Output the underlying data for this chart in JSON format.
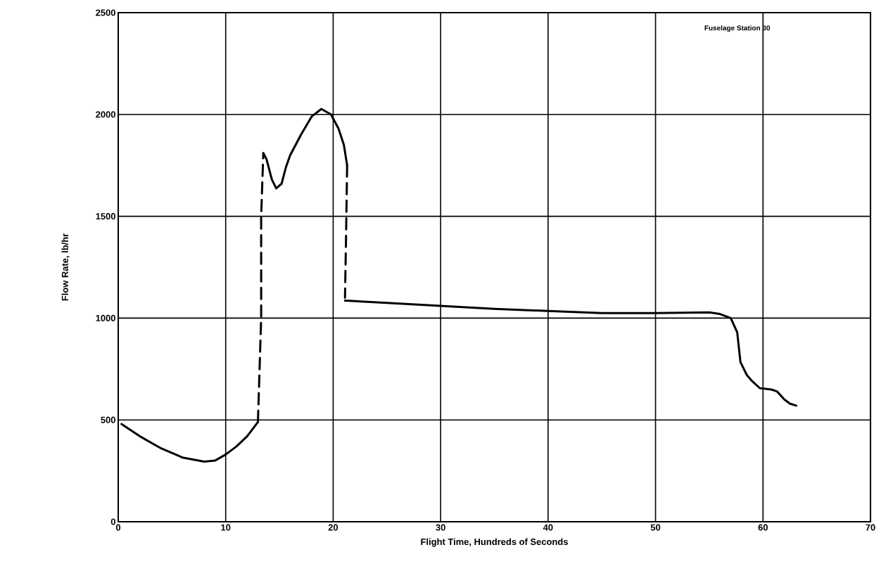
{
  "chart_data": {
    "type": "line",
    "xlabel": "Flight Time, Hundreds of Seconds",
    "ylabel": "Flow Rate, lb/hr",
    "annotations": [
      "Fuselage Station 30"
    ],
    "xlim": [
      0,
      70
    ],
    "ylim": [
      0,
      2500
    ],
    "xticks": [
      0,
      10,
      20,
      30,
      40,
      50,
      60,
      70
    ],
    "yticks": [
      0,
      500,
      1000,
      1500,
      2000,
      2500
    ],
    "grid": true,
    "series": [
      {
        "color": "#000000",
        "line_style": "solid",
        "x": [
          0.3,
          2,
          4,
          6,
          8,
          9,
          10,
          11,
          12,
          13
        ],
        "values": [
          480,
          420,
          360,
          315,
          295,
          300,
          330,
          370,
          420,
          490
        ]
      },
      {
        "color": "#000000",
        "line_style": "dashed",
        "x": [
          13,
          13.3,
          13.3,
          13.5
        ],
        "values": [
          490,
          1000,
          1500,
          1810
        ]
      },
      {
        "color": "#000000",
        "line_style": "solid",
        "x": [
          13.5,
          13.8,
          14.3,
          14.7,
          15.2,
          15.6,
          16,
          17,
          18,
          18.9,
          19.8,
          20.5,
          21,
          21.3
        ],
        "values": [
          1810,
          1780,
          1680,
          1637,
          1660,
          1740,
          1800,
          1900,
          1990,
          2027,
          2000,
          1930,
          1850,
          1750
        ]
      },
      {
        "color": "#000000",
        "line_style": "dashed",
        "x": [
          21.3,
          21.2,
          21.1
        ],
        "values": [
          1750,
          1400,
          1100
        ]
      },
      {
        "color": "#000000",
        "line_style": "solid",
        "x": [
          21.1,
          25,
          30,
          35,
          40,
          45,
          50,
          55,
          56,
          57,
          57.6,
          57.9,
          58.5,
          59,
          59.7,
          60.8,
          61.3,
          62,
          62.5,
          63.1
        ],
        "values": [
          1086,
          1075,
          1060,
          1045,
          1035,
          1025,
          1025,
          1028,
          1020,
          1000,
          930,
          784,
          720,
          690,
          656,
          649,
          640,
          600,
          580,
          570
        ]
      }
    ]
  }
}
